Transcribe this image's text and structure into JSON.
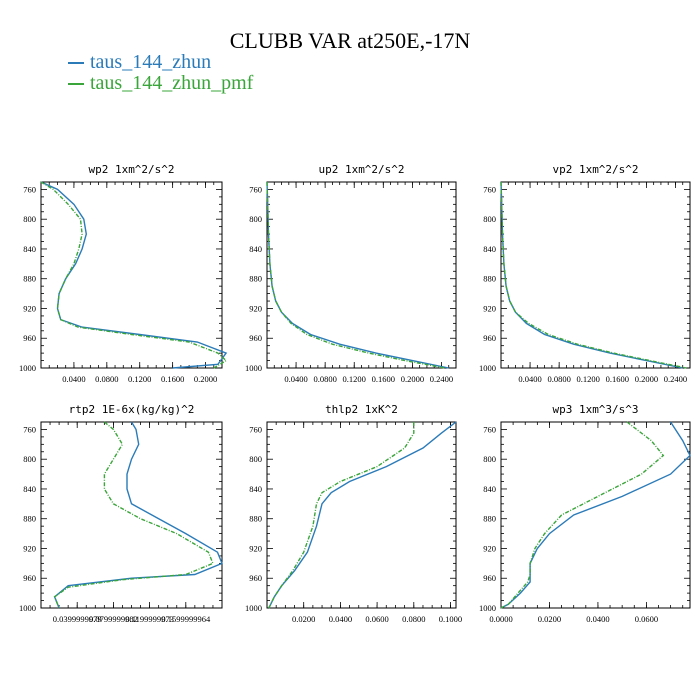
{
  "title": "CLUBB VAR at250E,-17N",
  "legend": [
    {
      "label": "taus_144_zhun",
      "color": "#2b7bb9"
    },
    {
      "label": "taus_144_zhun_pmf",
      "color": "#3aa53a",
      "dashed": true
    }
  ],
  "chart_data": [
    {
      "type": "line",
      "title": "wp2   1xm^2/s^2",
      "xlim": [
        0.0,
        0.22
      ],
      "ylim": [
        1000,
        750
      ],
      "yticks": [
        "760",
        "800",
        "840",
        "880",
        "920",
        "960",
        "1000"
      ],
      "xticks": [
        "0.0400",
        "0.0800",
        "0.1200",
        "0.1600",
        "0.2000"
      ],
      "x_tick_values": [
        0.04,
        0.08,
        0.12,
        0.16,
        0.2
      ],
      "series": [
        {
          "name": "taus_144_zhun",
          "x": [
            0.0,
            0.02,
            0.04,
            0.052,
            0.055,
            0.05,
            0.042,
            0.03,
            0.022,
            0.02,
            0.024,
            0.05,
            0.12,
            0.19,
            0.225,
            0.215,
            0.16
          ],
          "y": [
            750,
            760,
            780,
            800,
            820,
            840,
            860,
            880,
            900,
            920,
            935,
            945,
            955,
            965,
            980,
            995,
            1000
          ]
        },
        {
          "name": "taus_144_zhun_pmf",
          "x": [
            0.0,
            0.015,
            0.033,
            0.048,
            0.05,
            0.046,
            0.04,
            0.03,
            0.022,
            0.02,
            0.024,
            0.045,
            0.11,
            0.18,
            0.215,
            0.225,
            0.21
          ],
          "y": [
            750,
            760,
            780,
            800,
            820,
            840,
            860,
            880,
            900,
            920,
            935,
            945,
            955,
            965,
            980,
            990,
            1000
          ]
        }
      ]
    },
    {
      "type": "line",
      "title": "up2   1xm^2/s^2",
      "xlim": [
        0.0,
        0.26
      ],
      "ylim": [
        1000,
        750
      ],
      "yticks": [
        "760",
        "800",
        "840",
        "880",
        "920",
        "960",
        "1000"
      ],
      "xticks": [
        "0.0400",
        "0.0800",
        "0.1200",
        "0.1600",
        "0.2000",
        "0.2400"
      ],
      "x_tick_values": [
        0.04,
        0.08,
        0.12,
        0.16,
        0.2,
        0.24
      ],
      "series": [
        {
          "name": "taus_144_zhun",
          "x": [
            0.0,
            0.001,
            0.002,
            0.004,
            0.007,
            0.012,
            0.02,
            0.035,
            0.06,
            0.1,
            0.15,
            0.2,
            0.25
          ],
          "y": [
            750,
            780,
            820,
            860,
            890,
            910,
            925,
            940,
            955,
            968,
            980,
            990,
            1000
          ]
        },
        {
          "name": "taus_144_zhun_pmf",
          "x": [
            0.0,
            0.001,
            0.002,
            0.004,
            0.007,
            0.012,
            0.02,
            0.033,
            0.055,
            0.09,
            0.14,
            0.19,
            0.245
          ],
          "y": [
            750,
            780,
            820,
            860,
            890,
            910,
            925,
            940,
            955,
            968,
            980,
            990,
            1000
          ]
        }
      ]
    },
    {
      "type": "line",
      "title": "vp2   1xm^2/s^2",
      "xlim": [
        0.0,
        0.26
      ],
      "ylim": [
        1000,
        750
      ],
      "yticks": [
        "760",
        "800",
        "840",
        "880",
        "920",
        "960",
        "1000"
      ],
      "xticks": [
        "0.0400",
        "0.0800",
        "0.1200",
        "0.1600",
        "0.2000",
        "0.2400"
      ],
      "x_tick_values": [
        0.04,
        0.08,
        0.12,
        0.16,
        0.2,
        0.24
      ],
      "series": [
        {
          "name": "taus_144_zhun",
          "x": [
            0.0,
            0.001,
            0.002,
            0.004,
            0.007,
            0.012,
            0.02,
            0.035,
            0.06,
            0.1,
            0.15,
            0.2,
            0.25
          ],
          "y": [
            750,
            780,
            820,
            860,
            890,
            910,
            925,
            940,
            955,
            968,
            980,
            990,
            1000
          ]
        },
        {
          "name": "taus_144_zhun_pmf",
          "x": [
            0.0,
            0.001,
            0.002,
            0.004,
            0.007,
            0.012,
            0.02,
            0.038,
            0.065,
            0.105,
            0.155,
            0.205,
            0.255
          ],
          "y": [
            750,
            780,
            820,
            860,
            890,
            910,
            925,
            940,
            955,
            968,
            980,
            990,
            1000
          ]
        }
      ]
    },
    {
      "type": "line",
      "title": "rtp2   1E-6x(kg/kg)^2",
      "xlim": [
        0.0,
        0.2
      ],
      "ylim": [
        1000,
        750
      ],
      "yticks": [
        "760",
        "800",
        "840",
        "880",
        "920",
        "960",
        "1000"
      ],
      "xticks": [
        "0.0399999979",
        "0.0799999982",
        "0.1199999973",
        "0.1599999964"
      ],
      "x_tick_values": [
        0.04,
        0.08,
        0.12,
        0.16
      ],
      "series": [
        {
          "name": "taus_144_zhun",
          "x": [
            0.1,
            0.105,
            0.108,
            0.1,
            0.095,
            0.095,
            0.1,
            0.13,
            0.16,
            0.195,
            0.2,
            0.17,
            0.1,
            0.03,
            0.015,
            0.02
          ],
          "y": [
            750,
            760,
            780,
            800,
            820,
            840,
            860,
            880,
            900,
            925,
            940,
            955,
            960,
            970,
            985,
            1000
          ]
        },
        {
          "name": "taus_144_zhun_pmf",
          "x": [
            0.07,
            0.08,
            0.09,
            0.08,
            0.07,
            0.07,
            0.08,
            0.11,
            0.15,
            0.185,
            0.19,
            0.16,
            0.09,
            0.03,
            0.015,
            0.02
          ],
          "y": [
            750,
            760,
            780,
            800,
            820,
            840,
            860,
            880,
            900,
            925,
            940,
            955,
            962,
            972,
            985,
            1000
          ]
        }
      ]
    },
    {
      "type": "line",
      "title": "thlp2   1xK^2",
      "xlim": [
        0.0,
        0.103
      ],
      "ylim": [
        1000,
        750
      ],
      "yticks": [
        "760",
        "800",
        "840",
        "880",
        "920",
        "960",
        "1000"
      ],
      "xticks": [
        "0.0200",
        "0.0400",
        "0.0600",
        "0.0800",
        "0.1000"
      ],
      "x_tick_values": [
        0.02,
        0.04,
        0.06,
        0.08,
        0.1
      ],
      "series": [
        {
          "name": "taus_144_zhun",
          "x": [
            0.103,
            0.095,
            0.085,
            0.065,
            0.045,
            0.035,
            0.03,
            0.027,
            0.022,
            0.015,
            0.008,
            0.004,
            0.002,
            0.001
          ],
          "y": [
            750,
            765,
            785,
            810,
            830,
            845,
            860,
            890,
            925,
            950,
            970,
            985,
            995,
            1000
          ]
        },
        {
          "name": "taus_144_zhun_pmf",
          "x": [
            0.08,
            0.08,
            0.075,
            0.06,
            0.04,
            0.03,
            0.027,
            0.025,
            0.02,
            0.014,
            0.008,
            0.004,
            0.002,
            0.001
          ],
          "y": [
            750,
            765,
            785,
            810,
            830,
            845,
            860,
            890,
            925,
            950,
            970,
            985,
            995,
            1000
          ]
        }
      ]
    },
    {
      "type": "line",
      "title": "wp3   1xm^3/s^3",
      "xlim": [
        0.0,
        0.078
      ],
      "ylim": [
        1000,
        750
      ],
      "yticks": [
        "760",
        "800",
        "840",
        "880",
        "920",
        "960",
        "1000"
      ],
      "xticks": [
        "0.0000",
        "0.0200",
        "0.0400",
        "0.0600"
      ],
      "x_tick_values": [
        0.0,
        0.02,
        0.04,
        0.06
      ],
      "series": [
        {
          "name": "taus_144_zhun",
          "x": [
            0.07,
            0.075,
            0.078,
            0.07,
            0.05,
            0.03,
            0.02,
            0.015,
            0.012,
            0.012,
            0.012,
            0.008,
            0.003,
            0.0
          ],
          "y": [
            750,
            775,
            795,
            820,
            850,
            875,
            900,
            920,
            940,
            955,
            965,
            980,
            995,
            1000
          ]
        },
        {
          "name": "taus_144_zhun_pmf",
          "x": [
            0.052,
            0.062,
            0.067,
            0.058,
            0.04,
            0.025,
            0.018,
            0.014,
            0.012,
            0.012,
            0.011,
            0.007,
            0.003,
            0.0
          ],
          "y": [
            750,
            775,
            795,
            820,
            850,
            875,
            900,
            920,
            940,
            955,
            965,
            980,
            995,
            1000
          ]
        }
      ]
    }
  ]
}
